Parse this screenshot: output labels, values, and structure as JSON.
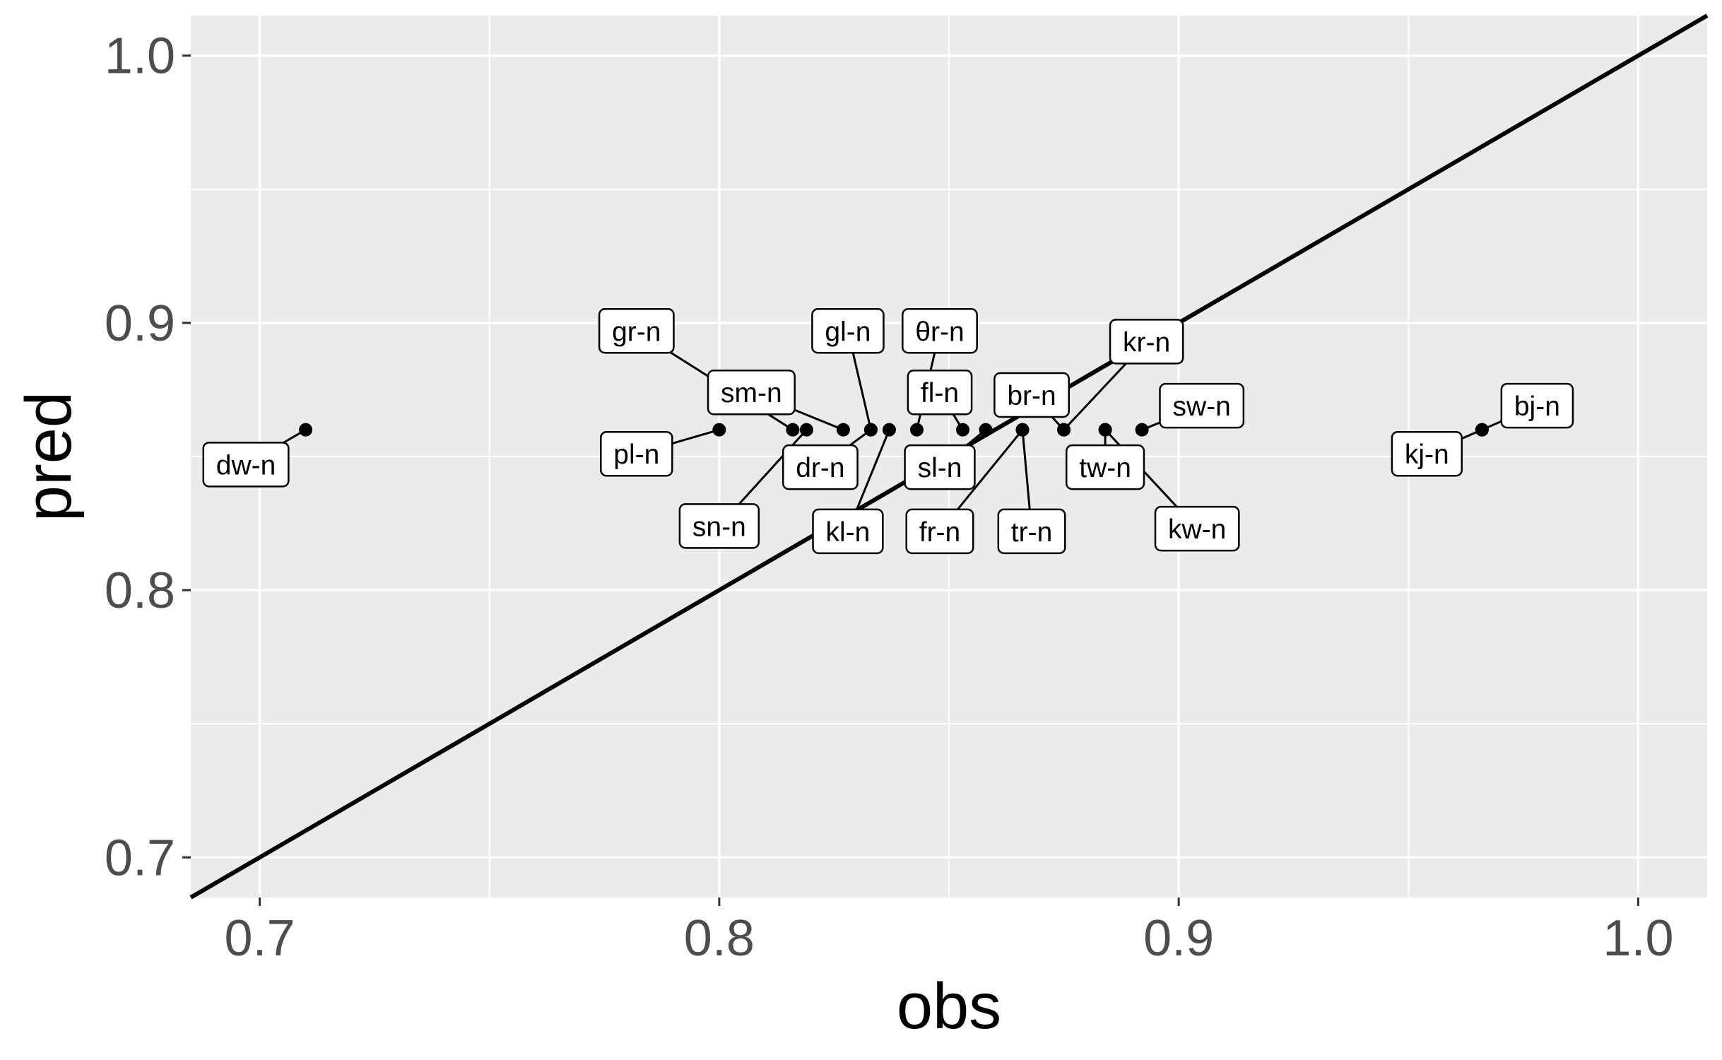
{
  "chart_data": {
    "type": "scatter",
    "xlabel": "obs",
    "ylabel": "pred",
    "xlim": [
      0.685,
      1.015
    ],
    "ylim": [
      0.685,
      1.015
    ],
    "x_ticks": [
      0.7,
      0.8,
      0.9,
      1.0
    ],
    "y_ticks": [
      0.7,
      0.8,
      0.9,
      1.0
    ],
    "x_tick_labels": [
      "0.7",
      "0.8",
      "0.9",
      "1.0"
    ],
    "y_tick_labels": [
      "0.7",
      "0.8",
      "0.9",
      "1.0"
    ],
    "grid": true,
    "reference_line": {
      "type": "identity",
      "slope": 1,
      "intercept": 0
    },
    "colors": {
      "panel": "#ebebeb",
      "grid": "#ffffff",
      "points": "#000000",
      "line": "#000000"
    },
    "points": [
      {
        "label": "dw-n",
        "x": 0.71,
        "y": 0.86,
        "lx": 0.697,
        "ly": 0.847
      },
      {
        "label": "pl-n",
        "x": 0.8,
        "y": 0.86,
        "lx": 0.782,
        "ly": 0.851
      },
      {
        "label": "gr-n",
        "x": 0.816,
        "y": 0.86,
        "lx": 0.782,
        "ly": 0.897
      },
      {
        "label": "sn-n",
        "x": 0.819,
        "y": 0.86,
        "lx": 0.8,
        "ly": 0.824
      },
      {
        "label": "sm-n",
        "x": 0.827,
        "y": 0.86,
        "lx": 0.807,
        "ly": 0.874
      },
      {
        "label": "dr-n",
        "x": 0.833,
        "y": 0.86,
        "lx": 0.822,
        "ly": 0.846
      },
      {
        "label": "gl-n",
        "x": 0.833,
        "y": 0.86,
        "lx": 0.828,
        "ly": 0.897
      },
      {
        "label": "kl-n",
        "x": 0.837,
        "y": 0.86,
        "lx": 0.828,
        "ly": 0.822
      },
      {
        "label": "θr-n",
        "x": 0.843,
        "y": 0.86,
        "lx": 0.848,
        "ly": 0.897
      },
      {
        "label": "fl-n",
        "x": 0.853,
        "y": 0.86,
        "lx": 0.848,
        "ly": 0.874
      },
      {
        "label": "sl-n",
        "x": 0.858,
        "y": 0.86,
        "lx": 0.848,
        "ly": 0.846
      },
      {
        "label": "fr-n",
        "x": 0.866,
        "y": 0.86,
        "lx": 0.848,
        "ly": 0.822
      },
      {
        "label": "br-n",
        "x": 0.875,
        "y": 0.86,
        "lx": 0.868,
        "ly": 0.873
      },
      {
        "label": "tr-n",
        "x": 0.866,
        "y": 0.86,
        "lx": 0.868,
        "ly": 0.822
      },
      {
        "label": "kr-n",
        "x": 0.875,
        "y": 0.86,
        "lx": 0.893,
        "ly": 0.893
      },
      {
        "label": "tw-n",
        "x": 0.884,
        "y": 0.86,
        "lx": 0.884,
        "ly": 0.846
      },
      {
        "label": "sw-n",
        "x": 0.892,
        "y": 0.86,
        "lx": 0.905,
        "ly": 0.869
      },
      {
        "label": "kw-n",
        "x": 0.884,
        "y": 0.86,
        "lx": 0.904,
        "ly": 0.823
      },
      {
        "label": "kj-n",
        "x": 0.966,
        "y": 0.86,
        "lx": 0.954,
        "ly": 0.851
      },
      {
        "label": "bj-n",
        "x": 0.966,
        "y": 0.86,
        "lx": 0.978,
        "ly": 0.869
      }
    ]
  }
}
